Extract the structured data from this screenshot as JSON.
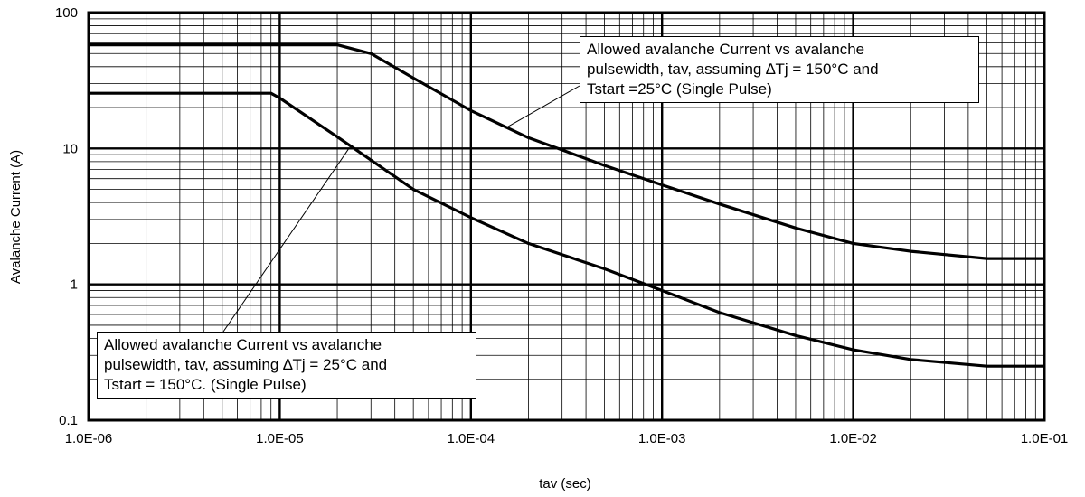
{
  "chart_data": {
    "type": "line",
    "xlabel": "tav (sec)",
    "ylabel": "Avalanche Current (A)",
    "x_scale": "log",
    "y_scale": "log",
    "xlim": [
      1e-06,
      0.1
    ],
    "ylim": [
      0.1,
      100
    ],
    "grid": true,
    "x_ticks": [
      {
        "value": 1e-06,
        "label": "1.0E-06"
      },
      {
        "value": 1e-05,
        "label": "1.0E-05"
      },
      {
        "value": 0.0001,
        "label": "1.0E-04"
      },
      {
        "value": 0.001,
        "label": "1.0E-03"
      },
      {
        "value": 0.01,
        "label": "1.0E-02"
      },
      {
        "value": 0.1,
        "label": "1.0E-01"
      }
    ],
    "y_ticks": [
      {
        "value": 0.1,
        "label": "0.1"
      },
      {
        "value": 1,
        "label": "1"
      },
      {
        "value": 10,
        "label": "10"
      },
      {
        "value": 100,
        "label": "100"
      }
    ],
    "series": [
      {
        "x": [
          1e-06,
          2e-05,
          3e-05,
          5e-05,
          0.0001,
          0.0002,
          0.0005,
          0.001,
          0.002,
          0.005,
          0.01,
          0.02,
          0.05,
          0.1
        ],
        "y": [
          58,
          58,
          50,
          33,
          19,
          12,
          7.5,
          5.4,
          3.9,
          2.6,
          2.0,
          1.75,
          1.55,
          1.55
        ]
      },
      {
        "x": [
          1e-06,
          9e-06,
          1e-05,
          2e-05,
          5e-05,
          0.0001,
          0.0002,
          0.0005,
          0.001,
          0.002,
          0.005,
          0.01,
          0.02,
          0.05,
          0.1
        ],
        "y": [
          25.5,
          25.5,
          23.5,
          12.2,
          5.0,
          3.1,
          2.0,
          1.3,
          0.9,
          0.62,
          0.42,
          0.33,
          0.28,
          0.25,
          0.25
        ]
      }
    ],
    "annotations": [
      {
        "lines": [
          "Allowed avalanche Current vs avalanche",
          "pulsewidth, tav, assuming ∆Tj = 150°C and",
          "Tstart =25°C (Single Pulse)"
        ],
        "points_to": {
          "x": 0.00015,
          "y": 14
        }
      },
      {
        "lines": [
          "Allowed avalanche Current vs avalanche",
          "pulsewidth, tav, assuming ∆Tj = 25°C and",
          "Tstart = 150°C. (Single Pulse)"
        ],
        "points_to": {
          "x": 2.3e-05,
          "y": 10
        }
      }
    ]
  }
}
